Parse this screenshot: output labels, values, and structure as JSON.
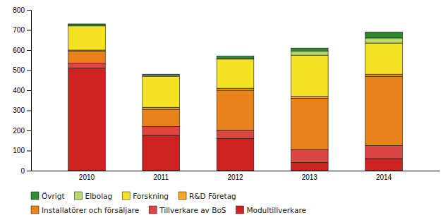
{
  "chart_data": {
    "type": "bar",
    "stacked": true,
    "categories": [
      "2010",
      "2011",
      "2012",
      "2013",
      "2014"
    ],
    "series": [
      {
        "name": "Modultillverkare",
        "color": "#cc2222",
        "values": [
          510,
          175,
          160,
          40,
          60
        ]
      },
      {
        "name": "Tillverkare av BoS",
        "color": "#dd4444",
        "values": [
          25,
          45,
          40,
          65,
          65
        ]
      },
      {
        "name": "Installatörer och försäljare",
        "color": "#e8821a",
        "values": [
          60,
          85,
          200,
          255,
          345
        ]
      },
      {
        "name": "R&D Företag",
        "color": "#f5a623",
        "values": [
          5,
          10,
          10,
          10,
          10
        ]
      },
      {
        "name": "Forskning",
        "color": "#f5e227",
        "values": [
          120,
          155,
          145,
          205,
          155
        ]
      },
      {
        "name": "Elbolag",
        "color": "#b8d96e",
        "values": [
          5,
          5,
          5,
          20,
          25
        ]
      },
      {
        "name": "Övrigt",
        "color": "#2e8b2e",
        "values": [
          5,
          5,
          10,
          15,
          30
        ]
      }
    ],
    "ylim": [
      0,
      800
    ],
    "yticks": [
      0,
      100,
      200,
      300,
      400,
      500,
      600,
      700,
      800
    ],
    "grid": false,
    "legend": "bottom"
  }
}
